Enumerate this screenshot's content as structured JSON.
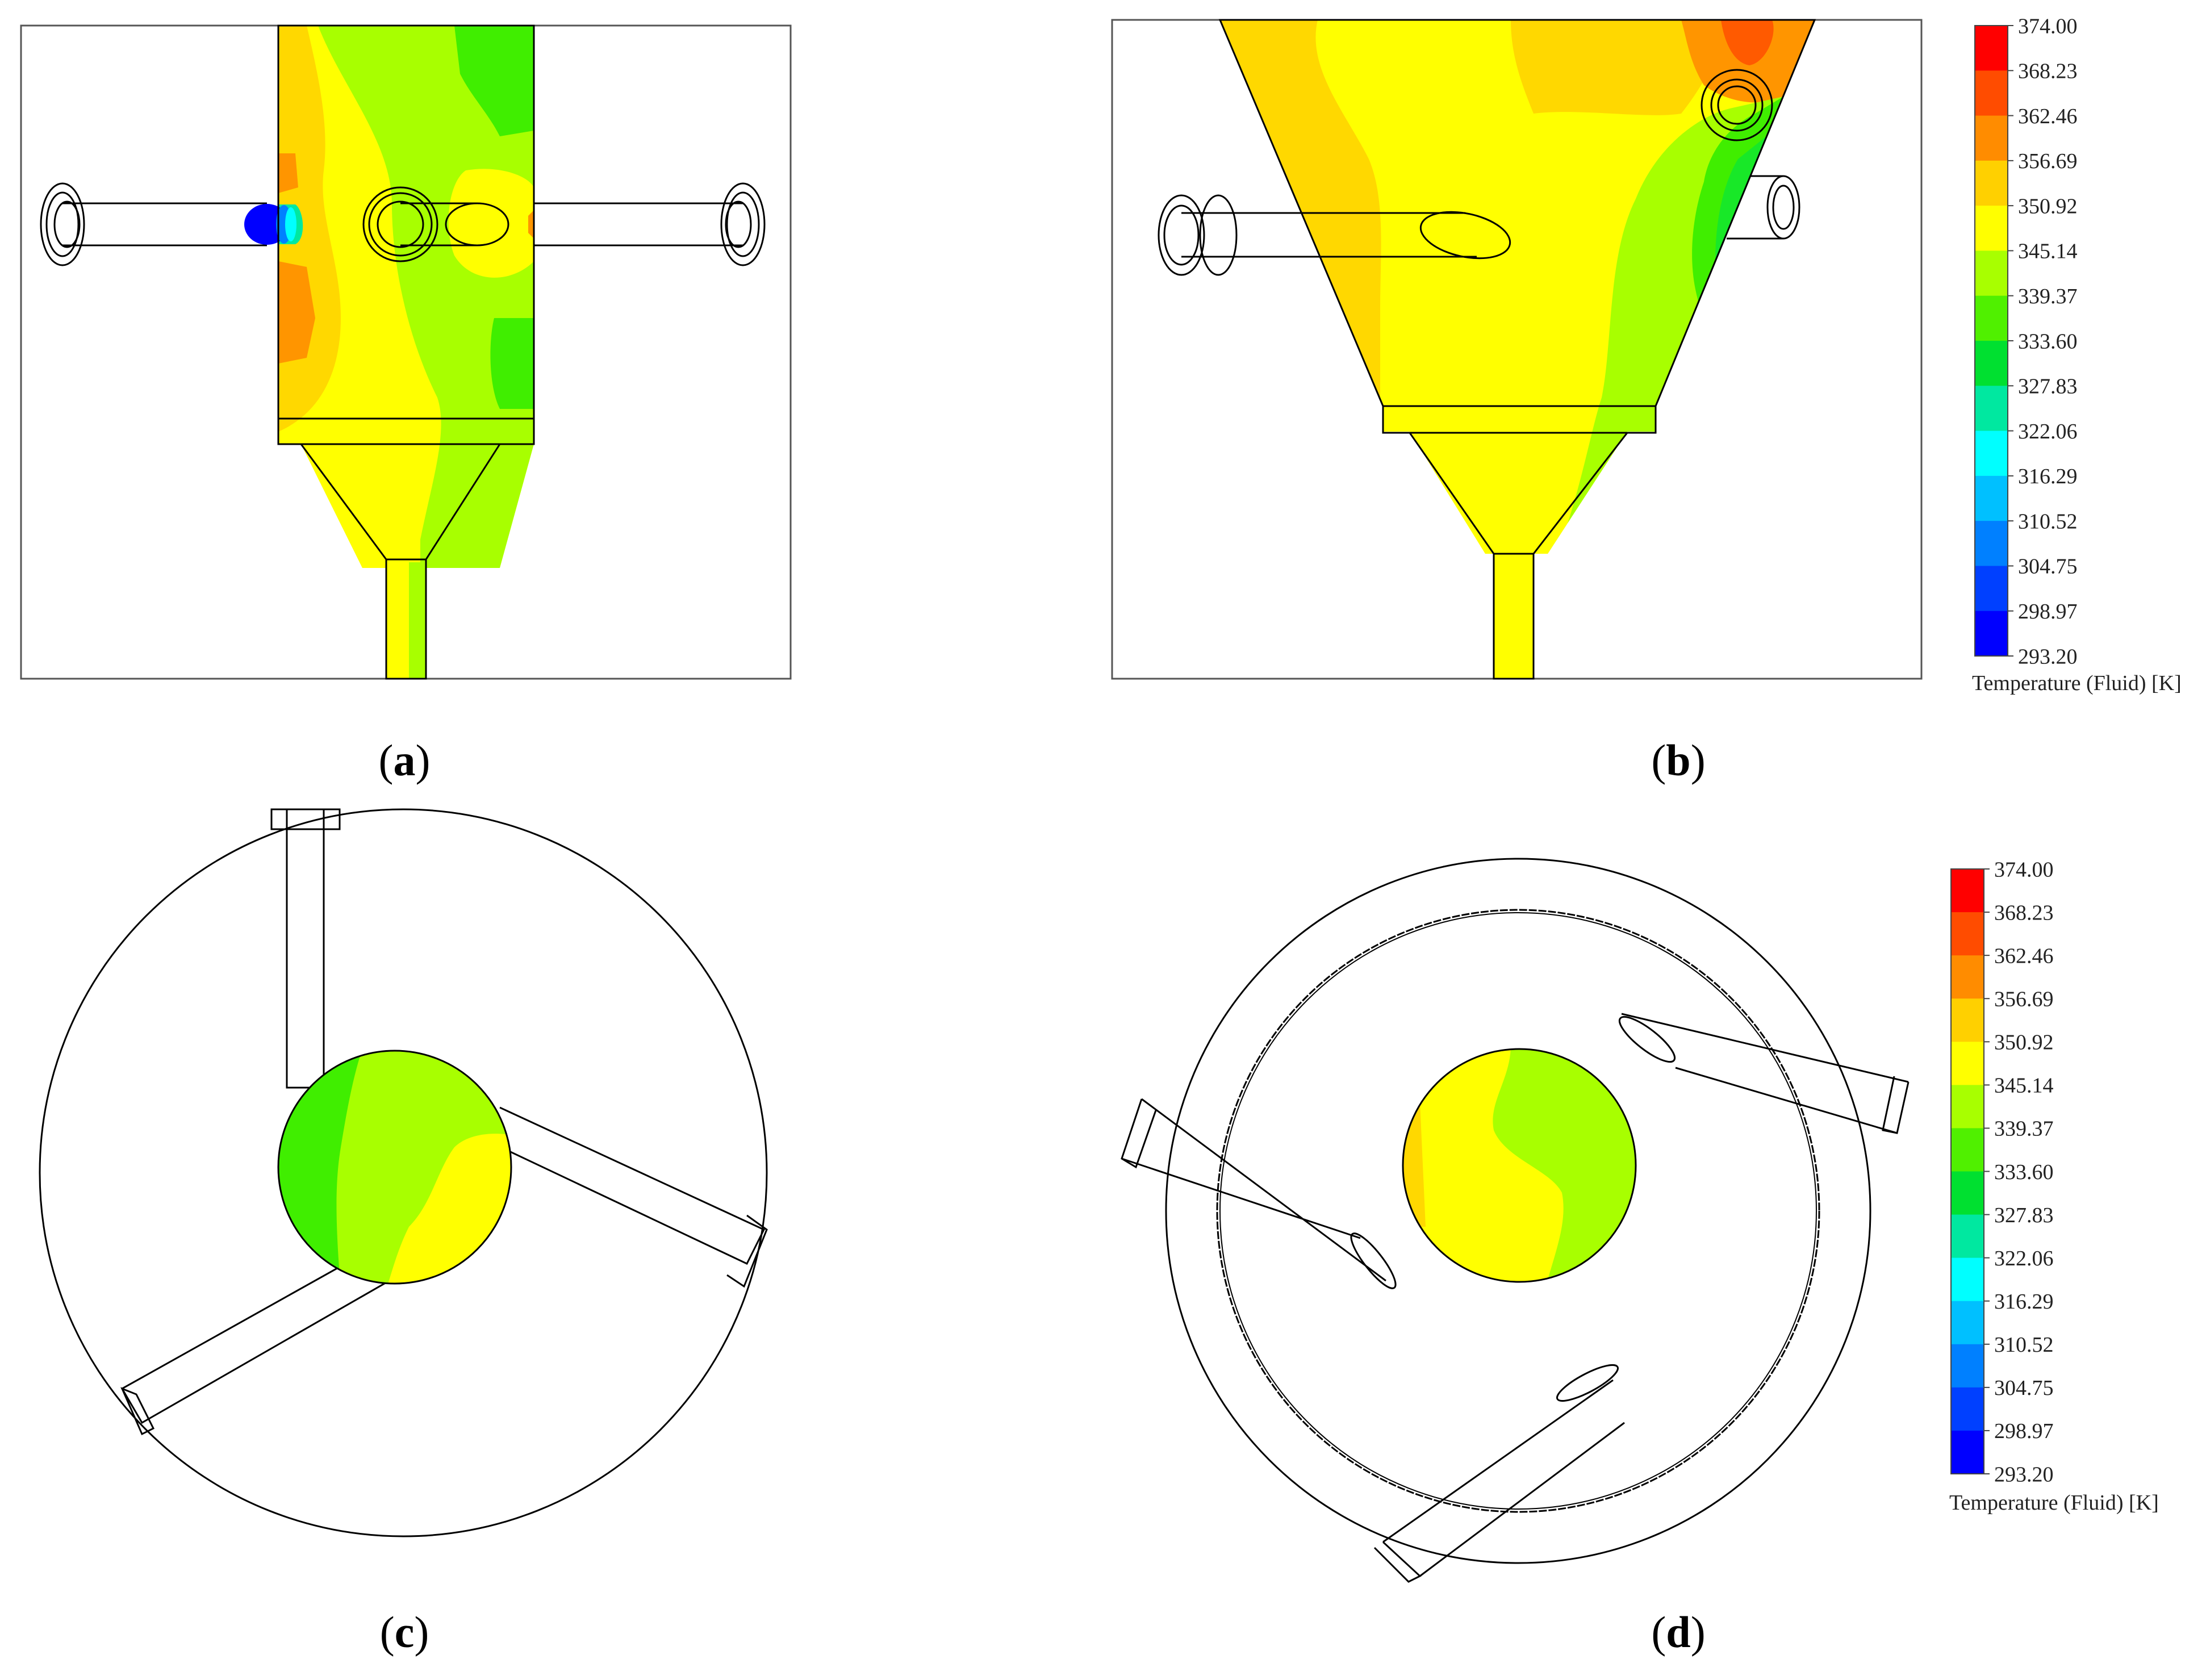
{
  "figure": {
    "panels": [
      {
        "id": "a",
        "label": "a"
      },
      {
        "id": "b",
        "label": "b"
      },
      {
        "id": "c",
        "label": "c"
      },
      {
        "id": "d",
        "label": "d"
      }
    ]
  },
  "legend": {
    "title": "Temperature (Fluid) [K]",
    "ticks": [
      "374.00",
      "368.23",
      "362.46",
      "356.69",
      "350.92",
      "345.14",
      "339.37",
      "333.60",
      "327.83",
      "322.06",
      "316.29",
      "310.52",
      "304.75",
      "298.97",
      "293.20"
    ],
    "colors": [
      "#ff0000",
      "#ff4c00",
      "#ff8c00",
      "#ffd000",
      "#ffff00",
      "#a8ff00",
      "#50f000",
      "#00e030",
      "#00e8a0",
      "#00ffff",
      "#00c0ff",
      "#0080ff",
      "#0040ff",
      "#0000ff"
    ]
  },
  "palette": {
    "yellow": "#ffff00",
    "yellow_orange": "#ffd800",
    "orange": "#ff9500",
    "dark_orange": "#ff5a00",
    "red": "#ff1a00",
    "yellow_green": "#a8ff00",
    "green": "#40ee00",
    "green_2": "#18e828",
    "blue": "#0000ff",
    "outline": "#000000"
  }
}
